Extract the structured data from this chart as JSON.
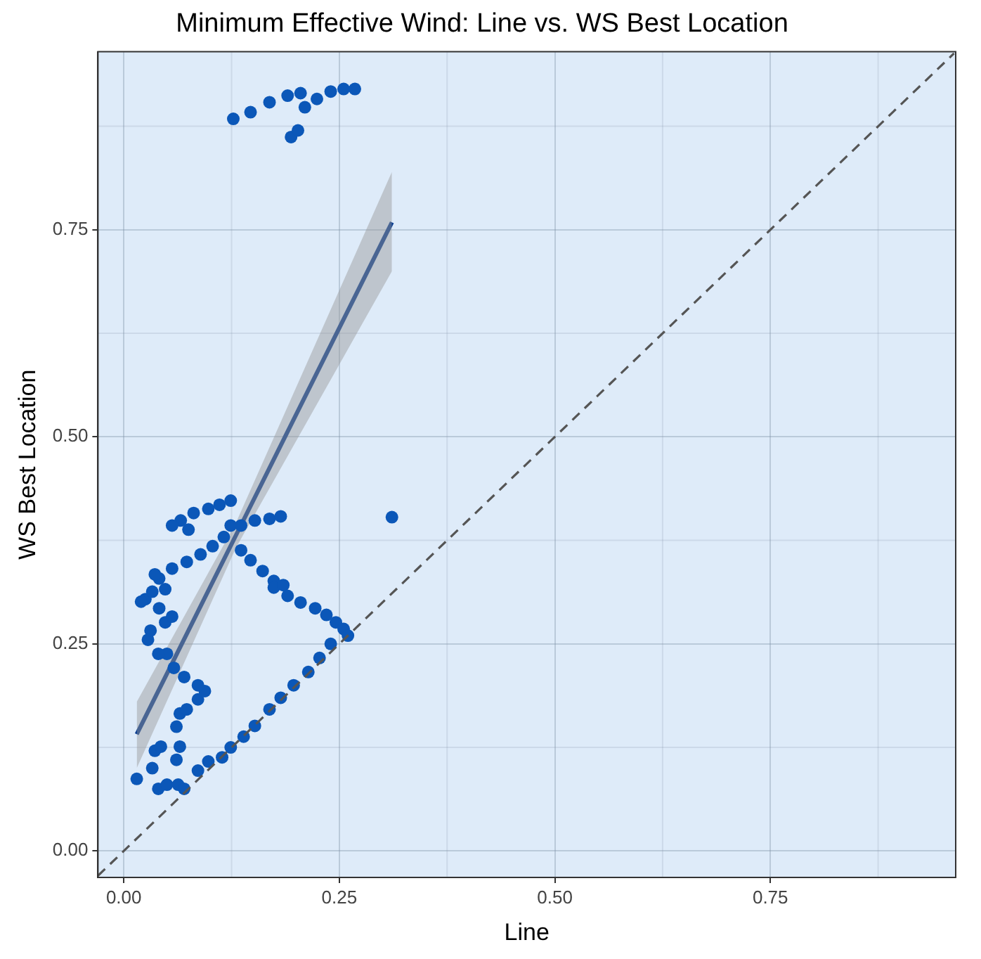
{
  "chart_data": {
    "type": "scatter",
    "title": "Minimum Effective Wind: Line vs. WS Best Location",
    "xlabel": "Line",
    "ylabel": "WS Best Location",
    "xlim": [
      -0.03,
      0.965
    ],
    "ylim": [
      -0.032,
      0.965
    ],
    "xticks": [
      {
        "value": 0,
        "label": "0.00"
      },
      {
        "value": 0.25,
        "label": "0.25"
      },
      {
        "value": 0.5,
        "label": "0.50"
      },
      {
        "value": 0.75,
        "label": "0.75"
      }
    ],
    "yticks": [
      {
        "value": 0,
        "label": "0.00"
      },
      {
        "value": 0.25,
        "label": "0.25"
      },
      {
        "value": 0.5,
        "label": "0.50"
      },
      {
        "value": 0.75,
        "label": "0.75"
      }
    ],
    "grid": true,
    "legend": false,
    "marker": "circle",
    "series": [
      {
        "type": "line",
        "color": "#555555",
        "line_style": "dashed",
        "marker": "none",
        "x": [
          -0.03,
          0.963
        ],
        "values": [
          -0.03,
          0.963
        ]
      },
      {
        "color": "#0b57b8",
        "x": [
          0.015,
          0.033,
          0.04,
          0.05,
          0.063,
          0.07,
          0.036,
          0.043,
          0.061,
          0.065,
          0.061,
          0.065,
          0.073,
          0.086,
          0.094,
          0.086,
          0.07,
          0.058,
          0.05,
          0.04,
          0.028,
          0.031,
          0.048,
          0.056,
          0.041,
          0.025,
          0.02,
          0.033,
          0.048,
          0.041,
          0.036,
          0.056,
          0.073,
          0.089,
          0.103,
          0.116,
          0.124,
          0.124,
          0.111,
          0.098,
          0.081,
          0.066,
          0.056,
          0.075,
          0.136,
          0.152,
          0.169,
          0.182,
          0.136,
          0.147,
          0.161,
          0.174,
          0.174,
          0.185,
          0.19,
          0.205,
          0.222,
          0.235,
          0.246,
          0.255,
          0.26,
          0.24,
          0.227,
          0.214,
          0.197,
          0.182,
          0.169,
          0.152,
          0.139,
          0.124,
          0.114,
          0.098,
          0.086,
          0.311,
          0.127,
          0.147,
          0.169,
          0.19,
          0.205,
          0.21,
          0.224,
          0.24,
          0.255,
          0.268,
          0.194,
          0.202
        ],
        "values": [
          0.087,
          0.1,
          0.075,
          0.08,
          0.08,
          0.075,
          0.121,
          0.126,
          0.11,
          0.126,
          0.15,
          0.166,
          0.171,
          0.183,
          0.193,
          0.2,
          0.21,
          0.221,
          0.238,
          0.238,
          0.255,
          0.266,
          0.276,
          0.283,
          0.293,
          0.304,
          0.301,
          0.313,
          0.316,
          0.329,
          0.334,
          0.341,
          0.349,
          0.358,
          0.368,
          0.379,
          0.393,
          0.423,
          0.418,
          0.413,
          0.408,
          0.399,
          0.393,
          0.388,
          0.393,
          0.399,
          0.401,
          0.404,
          0.363,
          0.351,
          0.338,
          0.326,
          0.318,
          0.321,
          0.308,
          0.3,
          0.293,
          0.285,
          0.276,
          0.268,
          0.26,
          0.25,
          0.233,
          0.216,
          0.2,
          0.185,
          0.171,
          0.151,
          0.138,
          0.125,
          0.113,
          0.108,
          0.097,
          0.403,
          0.884,
          0.892,
          0.904,
          0.912,
          0.915,
          0.898,
          0.908,
          0.917,
          0.92,
          0.92,
          0.862,
          0.87
        ]
      },
      {
        "type": "line",
        "color": "#0a3d91",
        "line_style": "solid",
        "marker": "none",
        "x": [
          0.015,
          0.13,
          0.311
        ],
        "values": [
          0.141,
          0.381,
          0.759
        ],
        "lower": [
          0.1,
          0.366,
          0.7
        ],
        "upper": [
          0.18,
          0.396,
          0.82
        ]
      }
    ]
  }
}
